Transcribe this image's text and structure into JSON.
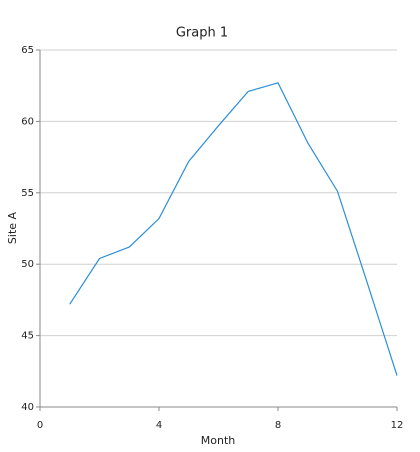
{
  "chart_data": {
    "type": "line",
    "title": "Graph 1",
    "x_label": "Month",
    "y_label": "Site A",
    "x": [
      1,
      2,
      3,
      4,
      5,
      6,
      7,
      8,
      9,
      10,
      11,
      12
    ],
    "series": [
      {
        "name": "Site A",
        "color": "#2a8fd8",
        "values": [
          47.2,
          50.4,
          51.2,
          53.2,
          57.2,
          59.7,
          62.1,
          62.7,
          58.5,
          55.1,
          48.7,
          42.2
        ]
      }
    ],
    "xlim": [
      0,
      12
    ],
    "xticks": [
      0,
      4,
      8,
      12
    ],
    "ylim": [
      40,
      65
    ],
    "yticks": [
      40,
      45,
      50,
      55,
      60,
      65
    ],
    "grid": true
  }
}
